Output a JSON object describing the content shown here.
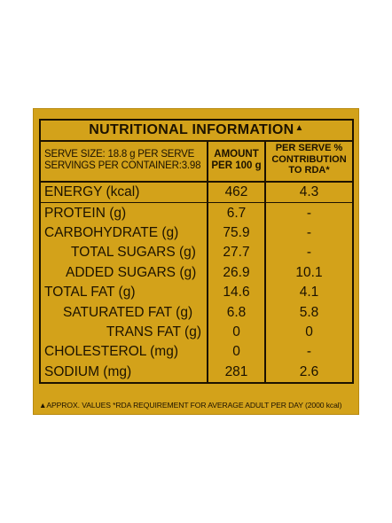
{
  "label": {
    "title": "NUTRITIONAL INFORMATION",
    "title_marker": "▲",
    "serve_size": "SERVE SIZE: 18.8 g PER SERVE",
    "servings_per_container": "SERVINGS PER CONTAINER:3.98",
    "amount_header_line1": "AMOUNT",
    "amount_header_line2": "PER 100 g",
    "rda_header_line1": "PER SERVE %",
    "rda_header_line2": "CONTRIBUTION",
    "rda_header_line3": "TO RDA*",
    "rows": [
      {
        "name": "ENERGY (kcal)",
        "amount": "462",
        "rda": "4.3"
      },
      {
        "name": "PROTEIN (g)",
        "amount": "6.7",
        "rda": "-"
      },
      {
        "name": "CARBOHYDRATE (g)",
        "amount": "75.9",
        "rda": "-"
      },
      {
        "name": "TOTAL SUGARS (g)",
        "amount": "27.7",
        "rda": "-"
      },
      {
        "name": "ADDED SUGARS (g)",
        "amount": "26.9",
        "rda": "10.1"
      },
      {
        "name": "TOTAL FAT (g)",
        "amount": "14.6",
        "rda": "4.1"
      },
      {
        "name": "SATURATED FAT (g)",
        "amount": "6.8",
        "rda": "5.8"
      },
      {
        "name": "TRANS FAT (g)",
        "amount": "0",
        "rda": "0"
      },
      {
        "name": "CHOLESTEROL (mg)",
        "amount": "0",
        "rda": "-"
      },
      {
        "name": "SODIUM (mg)",
        "amount": "281",
        "rda": "2.6"
      }
    ],
    "footnote": "▲APPROX. VALUES *RDA REQUIREMENT FOR AVERAGE ADULT PER DAY (2000 kcal)"
  },
  "colors": {
    "panel_background": "#d3a21a",
    "text": "#1c1200"
  }
}
